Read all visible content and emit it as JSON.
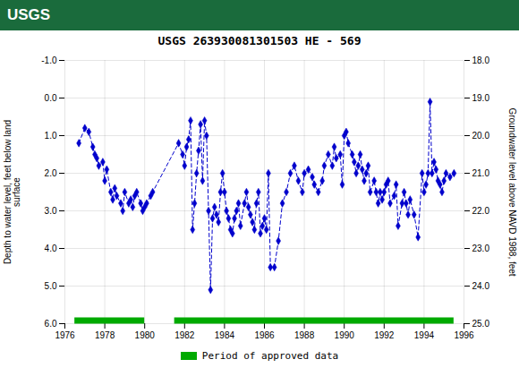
{
  "chart_data": {
    "type": "line",
    "title": "USGS 263930081301503 HE - 569",
    "annotations": [
      {
        "text": "USGS"
      }
    ],
    "ylabel": "Depth to water level, feet below land\nsurface",
    "y2label": "Groundwater level above NAVD 1988, feet",
    "xlim": [
      1976,
      1996
    ],
    "xticks": [
      1976,
      1978,
      1980,
      1982,
      1984,
      1986,
      1988,
      1990,
      1992,
      1994,
      1996
    ],
    "ylim": [
      6.0,
      -1.0
    ],
    "yticks": [
      {
        "value": -1.0,
        "label": "-1.0"
      },
      {
        "value": 0.0,
        "label": "0.0"
      },
      {
        "value": 1.0,
        "label": "1.0"
      },
      {
        "value": 2.0,
        "label": "2.0"
      },
      {
        "value": 3.0,
        "label": "3.0"
      },
      {
        "value": 4.0,
        "label": "4.0"
      },
      {
        "value": 5.0,
        "label": "5.0"
      },
      {
        "value": 6.0,
        "label": "6.0"
      }
    ],
    "y2lim": [
      25.0,
      18.0
    ],
    "y2ticks": [
      {
        "value": 25.0,
        "label": "25.0"
      },
      {
        "value": 24.0,
        "label": "24.0"
      },
      {
        "value": 23.0,
        "label": "23.0"
      },
      {
        "value": 22.0,
        "label": "22.0"
      },
      {
        "value": 21.0,
        "label": "21.0"
      },
      {
        "value": 20.0,
        "label": "20.0"
      },
      {
        "value": 19.0,
        "label": "19.0"
      },
      {
        "value": 18.0,
        "label": "18.0"
      }
    ],
    "grid": true,
    "legend": "bottom",
    "color": "#0000cc",
    "marker": "diamond",
    "line_style": "dashed",
    "x": [
      1976.7,
      1977.0,
      1977.2,
      1977.4,
      1977.5,
      1977.6,
      1977.7,
      1977.9,
      1978.0,
      1978.1,
      1978.3,
      1978.4,
      1978.5,
      1978.6,
      1978.8,
      1978.9,
      1979.0,
      1979.2,
      1979.3,
      1979.4,
      1979.5,
      1979.6,
      1979.8,
      1979.9,
      1980.0,
      1980.1,
      1980.3,
      1980.4,
      1981.7,
      1981.9,
      1982.0,
      1982.1,
      1982.2,
      1982.3,
      1982.4,
      1982.5,
      1982.6,
      1982.7,
      1982.8,
      1982.9,
      1983.0,
      1983.1,
      1983.2,
      1983.3,
      1983.4,
      1983.5,
      1983.6,
      1983.7,
      1983.8,
      1983.9,
      1984.0,
      1984.1,
      1984.2,
      1984.3,
      1984.4,
      1984.5,
      1984.6,
      1984.7,
      1984.8,
      1985.0,
      1985.1,
      1985.2,
      1985.3,
      1985.4,
      1985.5,
      1985.6,
      1985.7,
      1985.8,
      1985.9,
      1986.0,
      1986.1,
      1986.2,
      1986.3,
      1986.5,
      1986.7,
      1986.9,
      1987.1,
      1987.3,
      1987.5,
      1987.7,
      1987.9,
      1988.0,
      1988.2,
      1988.4,
      1988.5,
      1988.7,
      1988.9,
      1989.0,
      1989.2,
      1989.4,
      1989.5,
      1989.6,
      1989.8,
      1989.9,
      1990.0,
      1990.1,
      1990.2,
      1990.4,
      1990.5,
      1990.6,
      1990.7,
      1990.8,
      1990.9,
      1991.0,
      1991.1,
      1991.2,
      1991.3,
      1991.5,
      1991.6,
      1991.7,
      1991.8,
      1991.9,
      1992.0,
      1992.1,
      1992.2,
      1992.3,
      1992.5,
      1992.6,
      1992.7,
      1992.9,
      1993.0,
      1993.1,
      1993.2,
      1993.3,
      1993.5,
      1993.7,
      1993.9,
      1994.0,
      1994.1,
      1994.2,
      1994.3,
      1994.4,
      1994.5,
      1994.6,
      1994.7,
      1994.8,
      1994.9,
      1995.0,
      1995.1,
      1995.3,
      1995.5
    ],
    "values": [
      1.2,
      0.8,
      0.9,
      1.3,
      1.5,
      1.6,
      1.8,
      1.7,
      2.2,
      1.9,
      2.5,
      2.7,
      2.4,
      2.6,
      2.8,
      3.0,
      2.5,
      2.8,
      2.7,
      2.9,
      2.6,
      2.5,
      2.8,
      3.0,
      2.9,
      2.8,
      2.6,
      2.5,
      1.2,
      1.5,
      1.8,
      1.3,
      1.1,
      0.6,
      3.5,
      2.8,
      2.0,
      1.4,
      0.7,
      2.2,
      0.6,
      1.0,
      3.0,
      5.1,
      3.2,
      2.9,
      3.1,
      3.3,
      2.5,
      2.0,
      2.5,
      3.0,
      3.2,
      3.5,
      3.6,
      3.2,
      3.0,
      2.8,
      3.4,
      2.8,
      2.5,
      2.9,
      3.1,
      3.3,
      3.5,
      2.8,
      2.5,
      3.6,
      3.4,
      3.2,
      3.5,
      2.0,
      4.5,
      4.5,
      3.8,
      2.8,
      2.5,
      2.0,
      1.8,
      2.2,
      2.5,
      2.0,
      1.9,
      2.1,
      2.3,
      2.5,
      2.2,
      1.8,
      1.5,
      1.8,
      1.3,
      1.6,
      1.5,
      2.3,
      1.0,
      0.9,
      1.2,
      1.5,
      1.7,
      2.0,
      1.8,
      1.5,
      1.9,
      2.2,
      2.0,
      1.8,
      2.5,
      2.2,
      2.5,
      2.8,
      2.5,
      2.7,
      2.5,
      2.3,
      2.2,
      2.8,
      2.6,
      2.3,
      3.4,
      2.8,
      2.5,
      2.8,
      3.1,
      2.7,
      3.1,
      3.7,
      2.0,
      2.5,
      2.3,
      2.0,
      0.1,
      2.0,
      1.7,
      1.9,
      2.2,
      2.3,
      2.5,
      2.2,
      2.0,
      2.1,
      2.0
    ],
    "periods": {
      "name": "Period of approved data",
      "color": "#00aa00",
      "ranges": [
        [
          1976.5,
          1980.0
        ],
        [
          1981.5,
          1995.5
        ]
      ]
    }
  }
}
